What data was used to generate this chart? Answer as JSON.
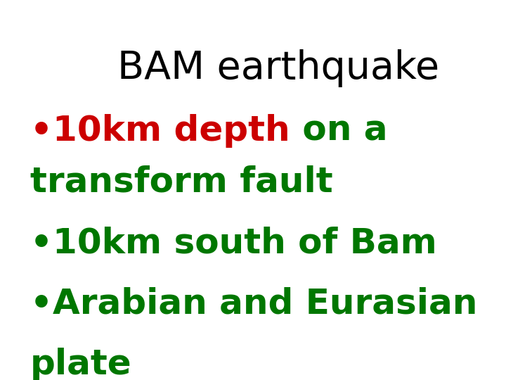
{
  "title": "BAM earthquake",
  "title_color": "#000000",
  "title_fontsize": 40,
  "title_weight": "normal",
  "bullet_red_text": "•10km depth",
  "bullet_green_suffix": " on a",
  "line2": "transform fault",
  "bullet2": "•10km south of Bam",
  "bullet3_line1": "•Arabian and Eurasian",
  "bullet3_line2": "plate",
  "color_red": "#cc0000",
  "color_green": "#007700",
  "bullet_fontsize": 36,
  "bullet_weight": "bold",
  "background_color": "#ffffff",
  "fig_width": 7.2,
  "fig_height": 5.4,
  "dpi": 100
}
